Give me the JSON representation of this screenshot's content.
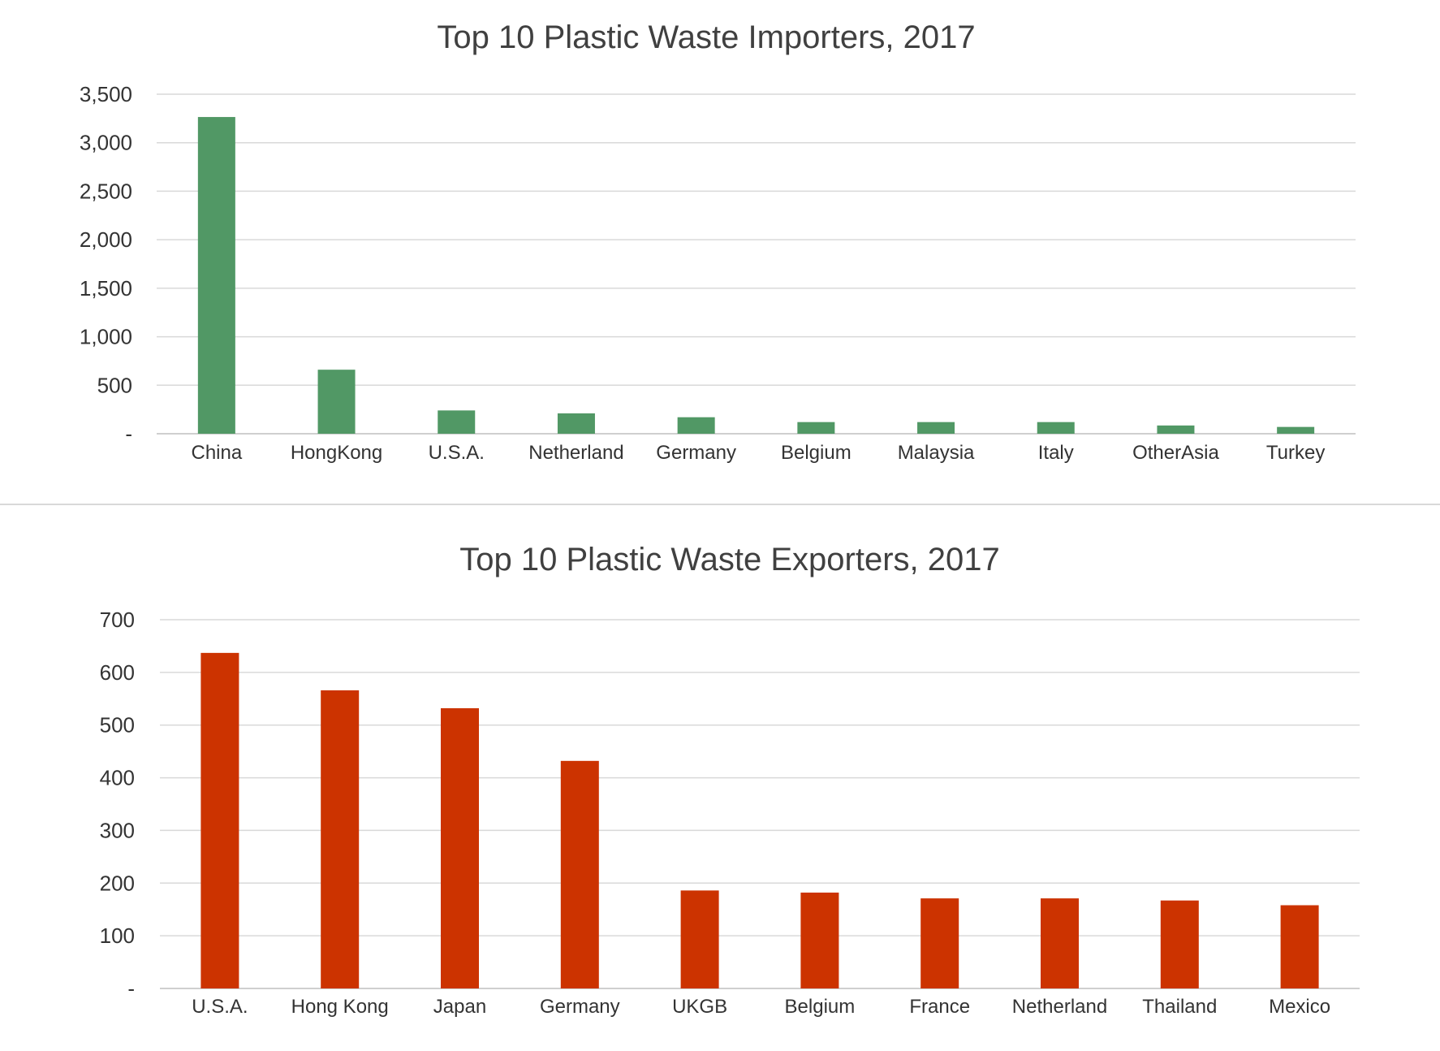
{
  "chart_data": [
    {
      "id": "importers",
      "type": "bar",
      "title": "Top 10 Plastic Waste Importers, 2017",
      "xlabel": "",
      "ylabel": "",
      "ylim": [
        0,
        3500
      ],
      "yticks": [
        0,
        500,
        1000,
        1500,
        2000,
        2500,
        3000,
        3500
      ],
      "ytick_labels": [
        "-",
        "500",
        "1,000",
        "1,500",
        "2,000",
        "2,500",
        "3,000",
        "3,500"
      ],
      "grid": true,
      "color": "#519865",
      "categories": [
        "China",
        "HongKong",
        "U.S.A.",
        "Netherland",
        "Germany",
        "Belgium",
        "Malaysia",
        "Italy",
        "OtherAsia",
        "Turkey"
      ],
      "values": [
        3265,
        660,
        240,
        210,
        170,
        120,
        120,
        120,
        85,
        70
      ]
    },
    {
      "id": "exporters",
      "type": "bar",
      "title": "Top 10 Plastic Waste Exporters, 2017",
      "xlabel": "",
      "ylabel": "",
      "ylim": [
        0,
        700
      ],
      "yticks": [
        0,
        100,
        200,
        300,
        400,
        500,
        600,
        700
      ],
      "ytick_labels": [
        "-",
        "100",
        "200",
        "300",
        "400",
        "500",
        "600",
        "700"
      ],
      "grid": true,
      "color": "#cc3300",
      "categories": [
        "U.S.A.",
        "Hong Kong",
        "Japan",
        "Germany",
        "UKGB",
        "Belgium",
        "France",
        "Netherland",
        "Thailand",
        "Mexico"
      ],
      "values": [
        637,
        566,
        532,
        432,
        186,
        182,
        171,
        171,
        167,
        158
      ]
    }
  ]
}
